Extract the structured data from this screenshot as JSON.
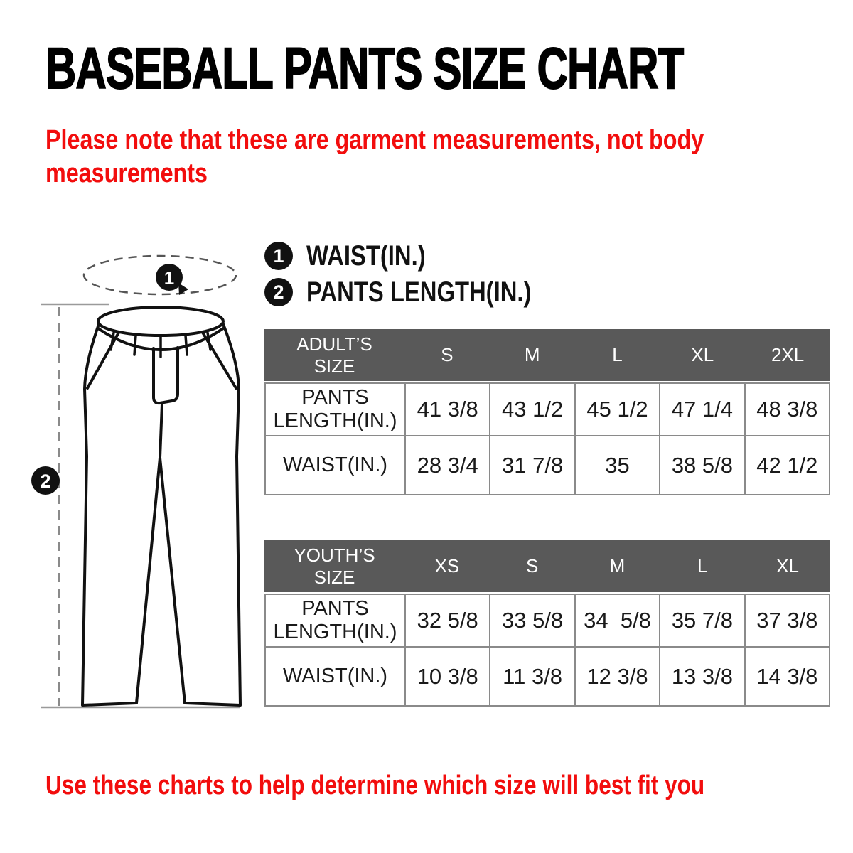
{
  "page": {
    "title": "BASEBALL PANTS SIZE CHART",
    "note_line1": "Please note that these are garment measurements, not body",
    "note_line2": "measurements",
    "footer": "Use these charts to help determine which size will best fit you"
  },
  "colors": {
    "accent_red": "#f20d0d",
    "table_header_bg": "#595959",
    "table_border": "#8a8a8a",
    "ink": "#111111"
  },
  "legend": {
    "items": [
      {
        "marker": "1",
        "label": "WAIST(IN.)"
      },
      {
        "marker": "2",
        "label": "PANTS LENGTH(IN.)"
      }
    ]
  },
  "diagram": {
    "description": "baseball pants line drawing with measurement markers",
    "marker_waist": "1",
    "marker_length": "2"
  },
  "tables": [
    {
      "id": "adult",
      "header_label": "ADULT’S SIZE",
      "columns": [
        "S",
        "M",
        "L",
        "XL",
        "2XL"
      ],
      "rows": [
        {
          "label": "PANTS LENGTH(IN.)",
          "values": [
            "41 3/8",
            "43 1/2",
            "45 1/2",
            "47 1/4",
            "48 3/8"
          ]
        },
        {
          "label": "WAIST(IN.)",
          "values": [
            "28 3/4",
            "31 7/8",
            "35",
            "38 5/8",
            "42 1/2"
          ]
        }
      ]
    },
    {
      "id": "youth",
      "header_label": "YOUTH’S SIZE",
      "columns": [
        "XS",
        "S",
        "M",
        "L",
        "XL"
      ],
      "rows": [
        {
          "label": "PANTS LENGTH(IN.)",
          "values": [
            "32 5/8",
            "33 5/8",
            "34  5/8",
            "35 7/8",
            "37 3/8"
          ]
        },
        {
          "label": "WAIST(IN.)",
          "values": [
            "10 3/8",
            "11 3/8",
            "12 3/8",
            "13 3/8",
            "14 3/8"
          ]
        }
      ]
    }
  ]
}
